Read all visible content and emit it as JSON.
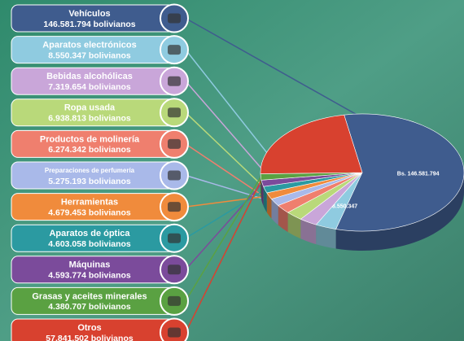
{
  "chart_data": {
    "type": "pie",
    "categories": [
      "Vehículos",
      "Aparatos electrónicos",
      "Bebidas alcohólicas",
      "Ropa usada",
      "Productos de molinería",
      "Preparaciones de perfumería",
      "Herramientas",
      "Aparatos de óptica",
      "Máquinas",
      "Grasas y aceites minerales",
      "Otros"
    ],
    "values": [
      146581794,
      8550347,
      7319654,
      6938813,
      6274342,
      5275193,
      4679453,
      4603058,
      4593774,
      4380707,
      57841502
    ],
    "value_labels": [
      "146.581.794 bolivianos",
      "8.550.347 bolivianos",
      "7.319.654 bolivianos",
      "6.938.813 bolivianos",
      "6.274.342 bolivianos",
      "5.275.193 bolivianos",
      "4.679.453 bolivianos",
      "4.603.058 bolivianos",
      "4.593.774 bolivianos",
      "4.380.707 bolivianos",
      "57.841.502 bolivianos"
    ],
    "slice_labels": [
      "Bs. 146.581.794",
      "Bs. 8.550.347",
      null,
      null,
      null,
      null,
      null,
      null,
      null,
      null,
      null
    ],
    "colors": [
      "#3f5c8e",
      "#8fcbe0",
      "#c9a6d9",
      "#b9d97a",
      "#ef7f6e",
      "#a9b9e9",
      "#f08b3c",
      "#2b9aa1",
      "#7b4b9b",
      "#5aa142",
      "#d8412f"
    ]
  }
}
